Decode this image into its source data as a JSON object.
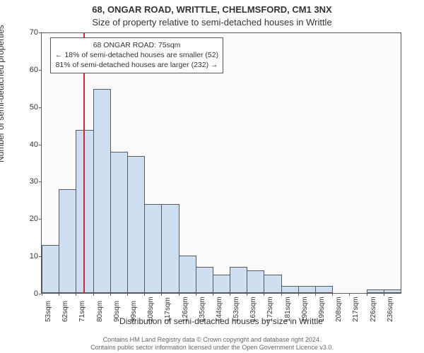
{
  "title_line1": "68, ONGAR ROAD, WRITTLE, CHELMSFORD, CM1 3NX",
  "title_line2": "Size of property relative to semi-detached houses in Writtle",
  "ylabel": "Number of semi-detached properties",
  "xlabel": "Distribution of semi-detached houses by size in Writtle",
  "chart": {
    "type": "histogram",
    "ymin": 0,
    "ymax": 70,
    "y_ticks": [
      0,
      10,
      20,
      30,
      40,
      50,
      60,
      70
    ],
    "x_categories": [
      "53sqm",
      "62sqm",
      "71sqm",
      "80sqm",
      "90sqm",
      "99sqm",
      "108sqm",
      "117sqm",
      "126sqm",
      "135sqm",
      "144sqm",
      "153sqm",
      "163sqm",
      "172sqm",
      "181sqm",
      "190sqm",
      "199sqm",
      "208sqm",
      "217sqm",
      "226sqm",
      "236sqm"
    ],
    "values": [
      13,
      28,
      44,
      55,
      38,
      37,
      24,
      24,
      10,
      7,
      5,
      7,
      6,
      5,
      2,
      2,
      2,
      0,
      0,
      1,
      1
    ],
    "bar_fill": "#cfdff2",
    "bar_stroke": "#58595c",
    "plot_bg": "#fbfbfb",
    "marker_index": 2.45,
    "marker_color": "#cc2b2b",
    "annotation": {
      "line1": "68 ONGAR ROAD: 75sqm",
      "line2": "← 18% of semi-detached houses are smaller (52)",
      "line3": "81% of semi-detached houses are larger (232) →"
    }
  },
  "footer_line1": "Contains HM Land Registry data © Crown copyright and database right 2024.",
  "footer_line2": "Contains public sector information licensed under the Open Government Licence v3.0.",
  "fontsizes": {
    "title": 13,
    "axis_label": 12,
    "tick": 11,
    "xtick": 10,
    "annot": 10.5,
    "footer": 9
  }
}
